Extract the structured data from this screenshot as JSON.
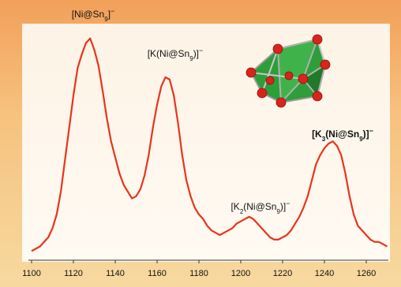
{
  "chart_data": {
    "type": "line",
    "x": [
      1100,
      1102,
      1104,
      1106,
      1108,
      1110,
      1112,
      1114,
      1116,
      1118,
      1120,
      1122,
      1124,
      1126,
      1128,
      1130,
      1132,
      1134,
      1136,
      1138,
      1140,
      1142,
      1144,
      1146,
      1148,
      1150,
      1152,
      1154,
      1156,
      1158,
      1160,
      1162,
      1164,
      1166,
      1168,
      1170,
      1172,
      1174,
      1176,
      1178,
      1180,
      1182,
      1184,
      1186,
      1188,
      1190,
      1192,
      1194,
      1196,
      1198,
      1200,
      1202,
      1204,
      1206,
      1208,
      1210,
      1212,
      1214,
      1216,
      1218,
      1220,
      1222,
      1224,
      1226,
      1228,
      1230,
      1232,
      1234,
      1236,
      1238,
      1240,
      1242,
      1244,
      1246,
      1248,
      1250,
      1252,
      1254,
      1256,
      1258,
      1260,
      1262,
      1264,
      1266,
      1268,
      1270
    ],
    "series": [
      {
        "color": "#e8341c",
        "values": [
          4,
          5,
          6,
          8,
          10,
          14,
          20,
          30,
          44,
          58,
          72,
          84,
          90,
          95,
          97,
          92,
          85,
          74,
          62,
          52,
          45,
          38,
          33,
          30,
          27,
          28,
          31,
          37,
          46,
          58,
          68,
          76,
          80,
          79,
          72,
          60,
          46,
          35,
          28,
          23,
          20,
          18,
          15,
          13,
          12,
          11,
          12,
          13,
          14,
          16,
          17,
          18,
          19,
          18,
          16,
          14,
          12,
          10,
          9,
          9,
          10,
          11,
          13,
          16,
          19,
          23,
          28,
          35,
          42,
          46,
          49,
          51,
          52,
          50,
          46,
          38,
          28,
          20,
          15,
          13,
          11,
          9,
          8,
          8,
          7,
          6
        ]
      }
    ],
    "xlim": [
      1100,
      1270
    ],
    "ylim": [
      0,
      100
    ],
    "xticks": [
      1100,
      1120,
      1140,
      1160,
      1180,
      1200,
      1220,
      1240,
      1260
    ],
    "annotations": [
      {
        "parts": [
          "[Ni@Sn",
          "9",
          "]",
          "−"
        ]
      },
      {
        "parts": [
          "[K(Ni@Sn",
          "9",
          ")]",
          "−"
        ]
      },
      {
        "parts": [
          "[K",
          "2",
          "(Ni@Sn",
          "9",
          ")]",
          "−"
        ]
      },
      {
        "parts": [
          "[K",
          "3",
          "(Ni@Sn",
          "9",
          ")]",
          "−"
        ],
        "bold": true
      }
    ]
  }
}
